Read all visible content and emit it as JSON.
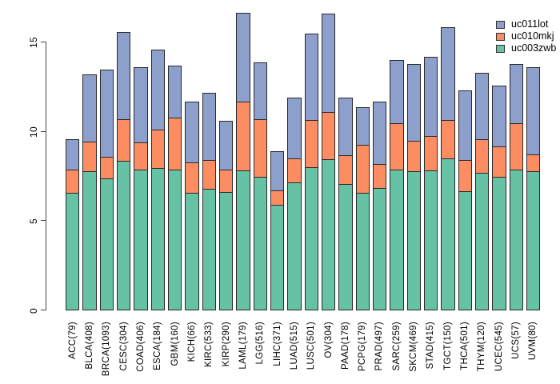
{
  "chart_data": {
    "type": "bar",
    "stacked": true,
    "title": "",
    "xlabel": "",
    "ylabel": "",
    "ylim": [
      0,
      16.93
    ],
    "yticks": [
      0,
      5,
      10,
      15
    ],
    "grid": false,
    "legend_position": "top-right",
    "categories": [
      "ACC(79)",
      "BLCA(408)",
      "BRCA(1093)",
      "CESC(304)",
      "COAD(406)",
      "ESCA(184)",
      "GBM(160)",
      "KICH(66)",
      "KIRC(533)",
      "KIRP(290)",
      "LAML(179)",
      "LGG(516)",
      "LIHC(371)",
      "LUAD(515)",
      "LUSC(501)",
      "OV(304)",
      "PAAD(178)",
      "PCPG(179)",
      "PRAD(497)",
      "SARC(259)",
      "SKCM(469)",
      "STAD(415)",
      "TGCT(150)",
      "THCA(501)",
      "THYM(120)",
      "UCEC(545)",
      "UCS(57)",
      "UVM(80)"
    ],
    "series": [
      {
        "name": "uc003zwb",
        "color": "#66C2A5",
        "values": [
          6.6,
          7.8,
          7.4,
          8.4,
          7.9,
          8.0,
          7.9,
          6.6,
          6.8,
          6.65,
          7.85,
          7.5,
          5.95,
          7.2,
          8.0,
          8.45,
          7.1,
          6.6,
          6.85,
          7.9,
          7.8,
          7.85,
          8.5,
          6.7,
          7.7,
          7.5,
          7.9,
          7.8
        ]
      },
      {
        "name": "uc010mkj",
        "color": "#FC8D62",
        "values": [
          1.3,
          1.65,
          1.2,
          2.3,
          1.5,
          2.1,
          2.9,
          1.7,
          1.6,
          1.25,
          3.85,
          3.2,
          0.75,
          1.3,
          2.65,
          2.65,
          1.6,
          2.7,
          1.35,
          2.6,
          1.7,
          1.9,
          2.15,
          1.7,
          1.9,
          1.7,
          2.6,
          0.9
        ]
      },
      {
        "name": "uc011lot",
        "color": "#8DA0CB",
        "values": [
          1.7,
          3.75,
          4.9,
          4.9,
          4.2,
          4.5,
          2.9,
          3.4,
          3.8,
          2.7,
          4.95,
          3.2,
          2.2,
          3.4,
          4.85,
          5.5,
          3.2,
          2.1,
          3.5,
          3.5,
          4.3,
          4.45,
          5.2,
          3.9,
          3.7,
          3.4,
          3.3,
          4.9
        ]
      }
    ],
    "legend": {
      "entries": [
        {
          "label": "uc011lot",
          "color": "#8DA0CB"
        },
        {
          "label": "uc010mkj",
          "color": "#FC8D62"
        },
        {
          "label": "uc003zwb",
          "color": "#66C2A5"
        }
      ]
    }
  }
}
